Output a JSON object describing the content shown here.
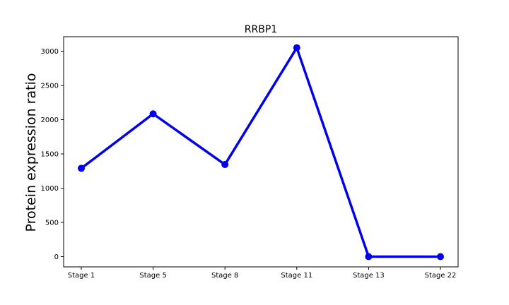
{
  "chart_data": {
    "type": "line",
    "title": "RRBP1",
    "xlabel": "",
    "ylabel": "Protein expression ratio",
    "categories": [
      "Stage 1",
      "Stage 5",
      "Stage 8",
      "Stage 11",
      "Stage 13",
      "Stage 22"
    ],
    "series": [
      {
        "values": [
          1290,
          2085,
          1345,
          3050,
          0,
          0
        ],
        "color": "#0000ee"
      }
    ],
    "yticks": [
      0,
      500,
      1000,
      1500,
      2000,
      2500,
      3000
    ],
    "ylim": [
      -160,
      3200
    ],
    "grid": false,
    "legend": "none"
  }
}
